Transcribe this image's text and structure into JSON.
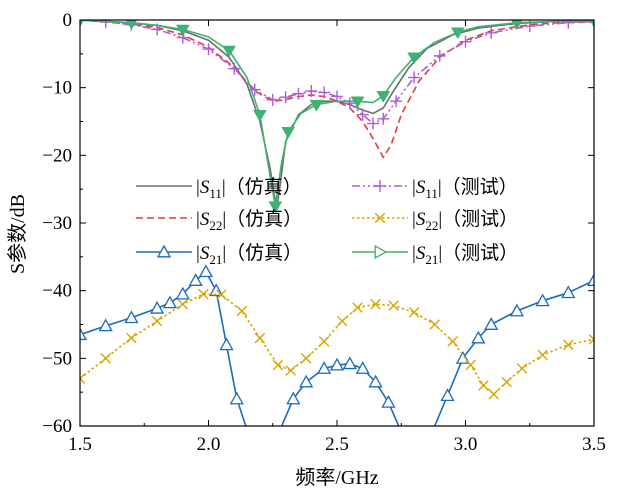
{
  "chart_data": {
    "type": "line",
    "xlabel": "频率/GHz",
    "ylabel": "S参数/dB",
    "xlim": [
      1.5,
      3.5
    ],
    "ylim": [
      -60,
      0
    ],
    "xticks": [
      "1.5",
      "2.0",
      "2.5",
      "3.0",
      "3.5"
    ],
    "yticks": [
      "0",
      "−10",
      "−20",
      "−30",
      "−40",
      "−50",
      "−60"
    ],
    "grid": false,
    "legend_position": "center-left",
    "series": [
      {
        "name": "|S11|（仿真）",
        "sub": "11",
        "tag": "（仿真）",
        "color": "#6d6d6d",
        "style": "solid",
        "marker": "none",
        "points": [
          [
            1.5,
            0
          ],
          [
            1.6,
            -0.2
          ],
          [
            1.7,
            -0.4
          ],
          [
            1.8,
            -0.8
          ],
          [
            1.9,
            -1.6
          ],
          [
            2.0,
            -3.0
          ],
          [
            2.08,
            -5.5
          ],
          [
            2.15,
            -9.5
          ],
          [
            2.2,
            -15
          ],
          [
            2.24,
            -22
          ],
          [
            2.265,
            -28
          ],
          [
            2.28,
            -24
          ],
          [
            2.3,
            -18
          ],
          [
            2.35,
            -14
          ],
          [
            2.4,
            -12.5
          ],
          [
            2.45,
            -12
          ],
          [
            2.5,
            -12
          ],
          [
            2.55,
            -12.5
          ],
          [
            2.6,
            -13.3
          ],
          [
            2.64,
            -13.8
          ],
          [
            2.68,
            -13
          ],
          [
            2.72,
            -10.5
          ],
          [
            2.78,
            -7
          ],
          [
            2.85,
            -4.2
          ],
          [
            2.95,
            -2.2
          ],
          [
            3.05,
            -1.2
          ],
          [
            3.2,
            -0.5
          ],
          [
            3.35,
            -0.2
          ],
          [
            3.5,
            -0.1
          ]
        ]
      },
      {
        "name": "|S22|（仿真）",
        "sub": "22",
        "tag": "（仿真）",
        "color": "#e03c3c",
        "style": "dashed",
        "marker": "none",
        "points": [
          [
            1.5,
            0
          ],
          [
            1.6,
            -0.3
          ],
          [
            1.7,
            -0.6
          ],
          [
            1.8,
            -1.1
          ],
          [
            1.9,
            -2.2
          ],
          [
            2.0,
            -4.0
          ],
          [
            2.1,
            -7.0
          ],
          [
            2.18,
            -10.5
          ],
          [
            2.25,
            -12
          ],
          [
            2.3,
            -11.8
          ],
          [
            2.35,
            -11.3
          ],
          [
            2.4,
            -11.1
          ],
          [
            2.45,
            -11.3
          ],
          [
            2.5,
            -12
          ],
          [
            2.55,
            -13
          ],
          [
            2.6,
            -15
          ],
          [
            2.64,
            -17.5
          ],
          [
            2.68,
            -20.3
          ],
          [
            2.71,
            -18.5
          ],
          [
            2.75,
            -14
          ],
          [
            2.82,
            -9
          ],
          [
            2.9,
            -5.5
          ],
          [
            3.0,
            -3.0
          ],
          [
            3.1,
            -1.6
          ],
          [
            3.25,
            -0.7
          ],
          [
            3.4,
            -0.3
          ],
          [
            3.5,
            -0.2
          ]
        ]
      },
      {
        "name": "|S21|（仿真）",
        "sub": "21",
        "tag": "（仿真）",
        "color": "#1a6ac2",
        "style": "solid",
        "marker": "triangle-up",
        "points": [
          [
            1.5,
            -46.5
          ],
          [
            1.6,
            -45.2
          ],
          [
            1.7,
            -44
          ],
          [
            1.8,
            -42.6
          ],
          [
            1.85,
            -41.8
          ],
          [
            1.9,
            -40.5
          ],
          [
            1.95,
            -38.5
          ],
          [
            1.99,
            -37.2
          ],
          [
            2.03,
            -40
          ],
          [
            2.07,
            -48
          ],
          [
            2.11,
            -56
          ],
          [
            2.145,
            -60
          ]
        ],
        "points2": [
          [
            2.285,
            -60
          ],
          [
            2.33,
            -56
          ],
          [
            2.38,
            -53.5
          ],
          [
            2.45,
            -51.5
          ],
          [
            2.5,
            -51
          ],
          [
            2.55,
            -50.8
          ],
          [
            2.6,
            -51.5
          ],
          [
            2.65,
            -53.5
          ],
          [
            2.7,
            -56.5
          ],
          [
            2.74,
            -60
          ]
        ],
        "points3": [
          [
            2.88,
            -60
          ],
          [
            2.93,
            -55.5
          ],
          [
            2.99,
            -50
          ],
          [
            3.05,
            -47
          ],
          [
            3.1,
            -45
          ],
          [
            3.2,
            -43
          ],
          [
            3.3,
            -41.5
          ],
          [
            3.4,
            -40.3
          ],
          [
            3.5,
            -38.5
          ]
        ]
      },
      {
        "name": "|S11|（测试）",
        "sub": "11",
        "tag": "（测试）",
        "color": "#b05cd6",
        "style": "dashdotdot",
        "marker": "plus",
        "points": [
          [
            1.5,
            0
          ],
          [
            1.6,
            -0.3
          ],
          [
            1.7,
            -0.7
          ],
          [
            1.8,
            -1.4
          ],
          [
            1.9,
            -2.6
          ],
          [
            2.0,
            -4.3
          ],
          [
            2.1,
            -7.2
          ],
          [
            2.18,
            -10.3
          ],
          [
            2.25,
            -11.8
          ],
          [
            2.3,
            -11.4
          ],
          [
            2.35,
            -10.9
          ],
          [
            2.4,
            -10.5
          ],
          [
            2.45,
            -10.7
          ],
          [
            2.5,
            -11.3
          ],
          [
            2.55,
            -12.3
          ],
          [
            2.6,
            -14
          ],
          [
            2.64,
            -15.3
          ],
          [
            2.68,
            -14.6
          ],
          [
            2.73,
            -12
          ],
          [
            2.8,
            -8.5
          ],
          [
            2.9,
            -5.3
          ],
          [
            3.0,
            -3.2
          ],
          [
            3.1,
            -1.9
          ],
          [
            3.25,
            -0.9
          ],
          [
            3.4,
            -0.4
          ],
          [
            3.5,
            -0.3
          ]
        ]
      },
      {
        "name": "|S22|（测试）",
        "sub": "22",
        "tag": "（测试）",
        "color": "#d8a400",
        "style": "dotted",
        "marker": "cross",
        "points": [
          [
            1.5,
            -53
          ],
          [
            1.6,
            -50
          ],
          [
            1.7,
            -47
          ],
          [
            1.8,
            -44.5
          ],
          [
            1.9,
            -42
          ],
          [
            1.98,
            -40.5
          ],
          [
            2.05,
            -40.6
          ],
          [
            2.13,
            -43
          ],
          [
            2.2,
            -47
          ],
          [
            2.27,
            -51
          ],
          [
            2.32,
            -51.8
          ],
          [
            2.38,
            -50
          ],
          [
            2.45,
            -47.5
          ],
          [
            2.52,
            -44.5
          ],
          [
            2.58,
            -42.5
          ],
          [
            2.65,
            -42
          ],
          [
            2.72,
            -42.2
          ],
          [
            2.8,
            -43.2
          ],
          [
            2.88,
            -45
          ],
          [
            2.95,
            -47.5
          ],
          [
            3.02,
            -51
          ],
          [
            3.07,
            -54
          ],
          [
            3.11,
            -55.3
          ],
          [
            3.16,
            -53.5
          ],
          [
            3.22,
            -51.5
          ],
          [
            3.3,
            -49.5
          ],
          [
            3.4,
            -48
          ],
          [
            3.5,
            -47.2
          ]
        ]
      },
      {
        "name": "|S21|（测试）",
        "sub": "21",
        "tag": "（测试）",
        "color": "#3cb371",
        "style": "solid",
        "marker": "triangle-down",
        "points": [
          [
            1.5,
            0
          ],
          [
            1.6,
            -0.2
          ],
          [
            1.7,
            -0.4
          ],
          [
            1.8,
            -0.8
          ],
          [
            1.9,
            -1.4
          ],
          [
            2.0,
            -2.5
          ],
          [
            2.08,
            -4.5
          ],
          [
            2.15,
            -8.5
          ],
          [
            2.2,
            -14
          ],
          [
            2.235,
            -22
          ],
          [
            2.26,
            -27.5
          ],
          [
            2.285,
            -21
          ],
          [
            2.31,
            -16.5
          ],
          [
            2.36,
            -13.8
          ],
          [
            2.42,
            -12.5
          ],
          [
            2.5,
            -12
          ],
          [
            2.58,
            -12
          ],
          [
            2.64,
            -12.2
          ],
          [
            2.68,
            -11.2
          ],
          [
            2.73,
            -8.5
          ],
          [
            2.8,
            -5.5
          ],
          [
            2.88,
            -3.3
          ],
          [
            2.97,
            -1.8
          ],
          [
            3.05,
            -1.0
          ],
          [
            3.2,
            -0.4
          ],
          [
            3.35,
            -0.2
          ],
          [
            3.5,
            -0.1
          ]
        ]
      }
    ]
  }
}
